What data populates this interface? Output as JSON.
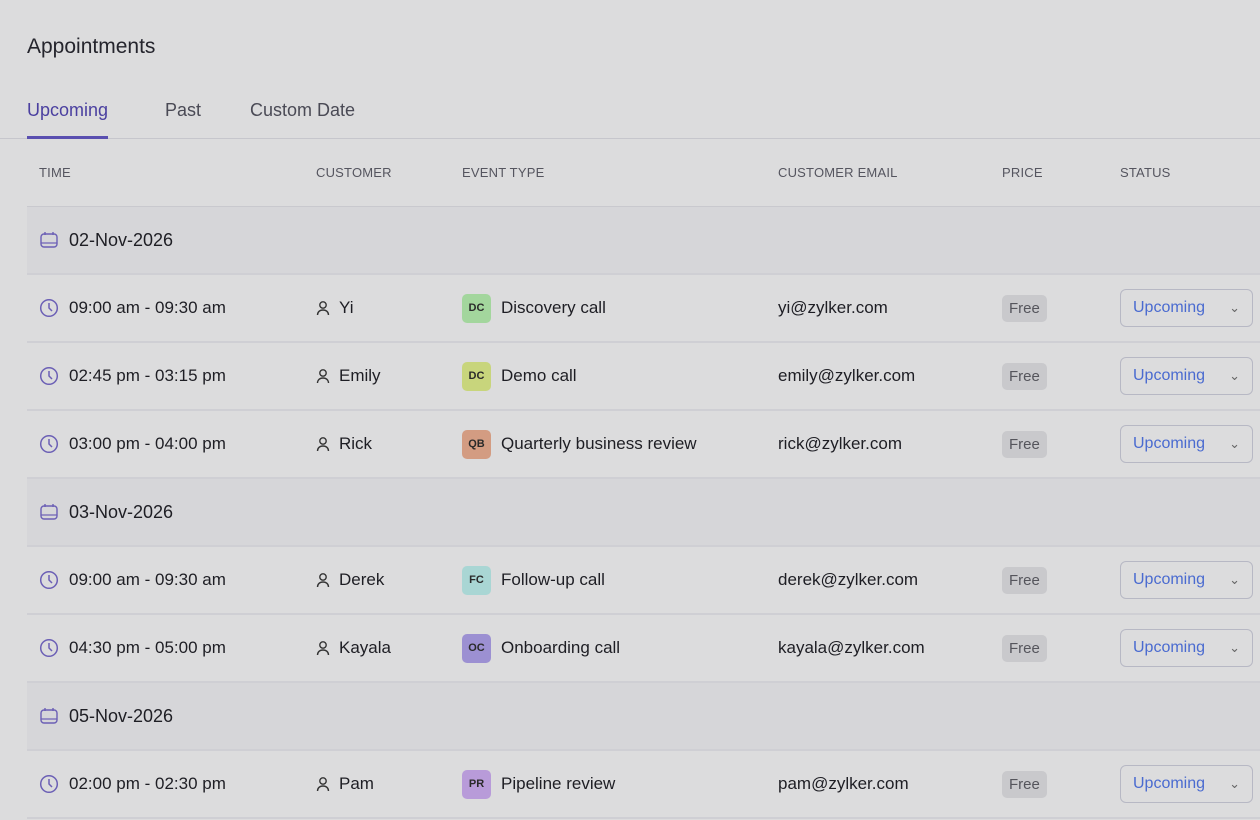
{
  "page": {
    "title": "Appointments"
  },
  "tabs": [
    {
      "label": "Upcoming",
      "active": true
    },
    {
      "label": "Past"
    },
    {
      "label": "Custom Date"
    }
  ],
  "columns": [
    "TIME",
    "CUSTOMER",
    "EVENT TYPE",
    "CUSTOMER EMAIL",
    "PRICE",
    "STATUS"
  ],
  "groups": [
    {
      "date": "02-Nov-2026",
      "rows": [
        {
          "time": "09:00 am - 09:30 am",
          "customer": "Yi",
          "badge": "DC",
          "badge_color": "#a3d69d",
          "event": "Discovery call",
          "email": "yi@zylker.com",
          "price": "Free",
          "status": "Upcoming"
        },
        {
          "time": "02:45 pm - 03:15 pm",
          "customer": "Emily",
          "badge": "DC",
          "badge_color": "#c8d57c",
          "event": "Demo call",
          "email": "emily@zylker.com",
          "price": "Free",
          "status": "Upcoming"
        },
        {
          "time": "03:00 pm - 04:00 pm",
          "customer": "Rick",
          "badge": "QB",
          "badge_color": "#d39c82",
          "event": "Quarterly business review",
          "email": "rick@zylker.com",
          "price": "Free",
          "status": "Upcoming"
        }
      ]
    },
    {
      "date": "03-Nov-2026",
      "rows": [
        {
          "time": "09:00 am - 09:30 am",
          "customer": "Derek",
          "badge": "FC",
          "badge_color": "#a9d6d4",
          "event": "Follow-up call",
          "email": "derek@zylker.com",
          "price": "Free",
          "status": "Upcoming"
        },
        {
          "time": "04:30 pm - 05:00 pm",
          "customer": "Kayala",
          "badge": "OC",
          "badge_color": "#9c90d2",
          "event": "Onboarding call",
          "email": "kayala@zylker.com",
          "price": "Free",
          "status": "Upcoming"
        }
      ]
    },
    {
      "date": "05-Nov-2026",
      "rows": [
        {
          "time": "02:00 pm - 02:30 pm",
          "customer": "Pam",
          "badge": "PR",
          "badge_color": "#b89bd9",
          "event": "Pipeline review",
          "email": "pam@zylker.com",
          "price": "Free",
          "status": "Upcoming"
        }
      ]
    }
  ],
  "colors": {
    "accent": "#5a4fb0",
    "status_text": "#4a6bd0"
  }
}
